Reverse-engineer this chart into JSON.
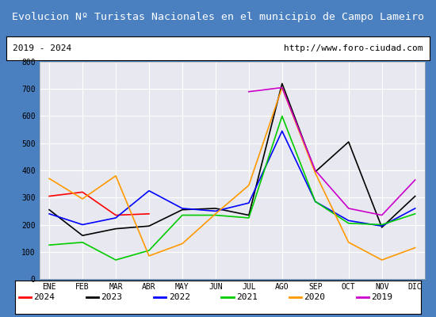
{
  "title": "Evolucion Nº Turistas Nacionales en el municipio de Campo Lameiro",
  "subtitle_left": "2019 - 2024",
  "subtitle_right": "http://www.foro-ciudad.com",
  "months": [
    "ENE",
    "FEB",
    "MAR",
    "ABR",
    "MAY",
    "JUN",
    "JUL",
    "AGO",
    "SEP",
    "OCT",
    "NOV",
    "DIC"
  ],
  "series": {
    "2024": [
      305,
      320,
      235,
      240,
      null,
      null,
      null,
      null,
      null,
      null,
      null,
      null
    ],
    "2023": [
      255,
      160,
      185,
      195,
      255,
      260,
      235,
      720,
      395,
      505,
      190,
      305
    ],
    "2022": [
      240,
      200,
      225,
      325,
      260,
      250,
      280,
      545,
      285,
      215,
      195,
      260
    ],
    "2021": [
      125,
      135,
      70,
      105,
      235,
      235,
      225,
      600,
      285,
      205,
      200,
      240
    ],
    "2020": [
      370,
      295,
      380,
      85,
      130,
      240,
      345,
      705,
      390,
      135,
      70,
      115
    ],
    "2019": [
      null,
      null,
      null,
      null,
      null,
      null,
      690,
      705,
      400,
      260,
      235,
      365
    ]
  },
  "colors": {
    "2024": "#ff0000",
    "2023": "#000000",
    "2022": "#0000ff",
    "2021": "#00cc00",
    "2020": "#ff9900",
    "2019": "#cc00cc"
  },
  "ylim": [
    0,
    800
  ],
  "yticks": [
    0,
    100,
    200,
    300,
    400,
    500,
    600,
    700,
    800
  ],
  "title_bg": "#4a7fc0",
  "title_color": "#ffffff",
  "plot_bg": "#e8e8f0",
  "outer_bg": "#4a7fc0",
  "subtitle_bg": "#ffffff",
  "border_color": "#4a7fc0",
  "grid_color": "#ffffff",
  "legend_years": [
    "2024",
    "2023",
    "2022",
    "2021",
    "2020",
    "2019"
  ]
}
